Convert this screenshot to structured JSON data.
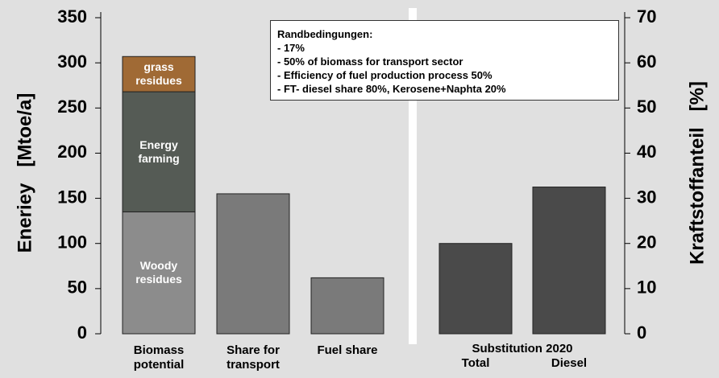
{
  "chart_data": {
    "type": "bar",
    "ylabel": "Eneriey   [Mtoe/a]",
    "y2label": "Kraftstoffanteil   [%]",
    "ylim": [
      0,
      350
    ],
    "yticks": [
      0,
      50,
      100,
      150,
      200,
      250,
      300,
      350
    ],
    "y2lim": [
      0,
      70
    ],
    "y2ticks": [
      0,
      10,
      20,
      30,
      40,
      50,
      60,
      70
    ],
    "categories": [
      "Biomass potential",
      "Share for transport",
      "Fuel share",
      "Total",
      "Diesel"
    ],
    "group_label": "Substitution 2020",
    "series": [
      {
        "name": "Woody residues",
        "color": "#8c8c8c",
        "values": [
          135,
          null,
          null,
          null,
          null
        ]
      },
      {
        "name": "Energy farming",
        "color": "#555b55",
        "values": [
          133,
          null,
          null,
          null,
          null
        ]
      },
      {
        "name": "grass residues",
        "color": "#a06a35",
        "values": [
          39,
          null,
          null,
          null,
          null
        ]
      },
      {
        "color": "#7a7a7a",
        "values": [
          null,
          155,
          62,
          null,
          null
        ]
      },
      {
        "color": "#4a4a4a",
        "axis": "y2",
        "values": [
          null,
          null,
          null,
          20,
          32.5
        ]
      }
    ],
    "annotation": {
      "title": "Randbedingungen:",
      "lines": [
        "- 17%",
        "- 50% of biomass for transport sector",
        "- Efficiency of fuel production process 50%",
        "- FT- diesel share 80%, Kerosene+Naphta  20%"
      ]
    }
  }
}
